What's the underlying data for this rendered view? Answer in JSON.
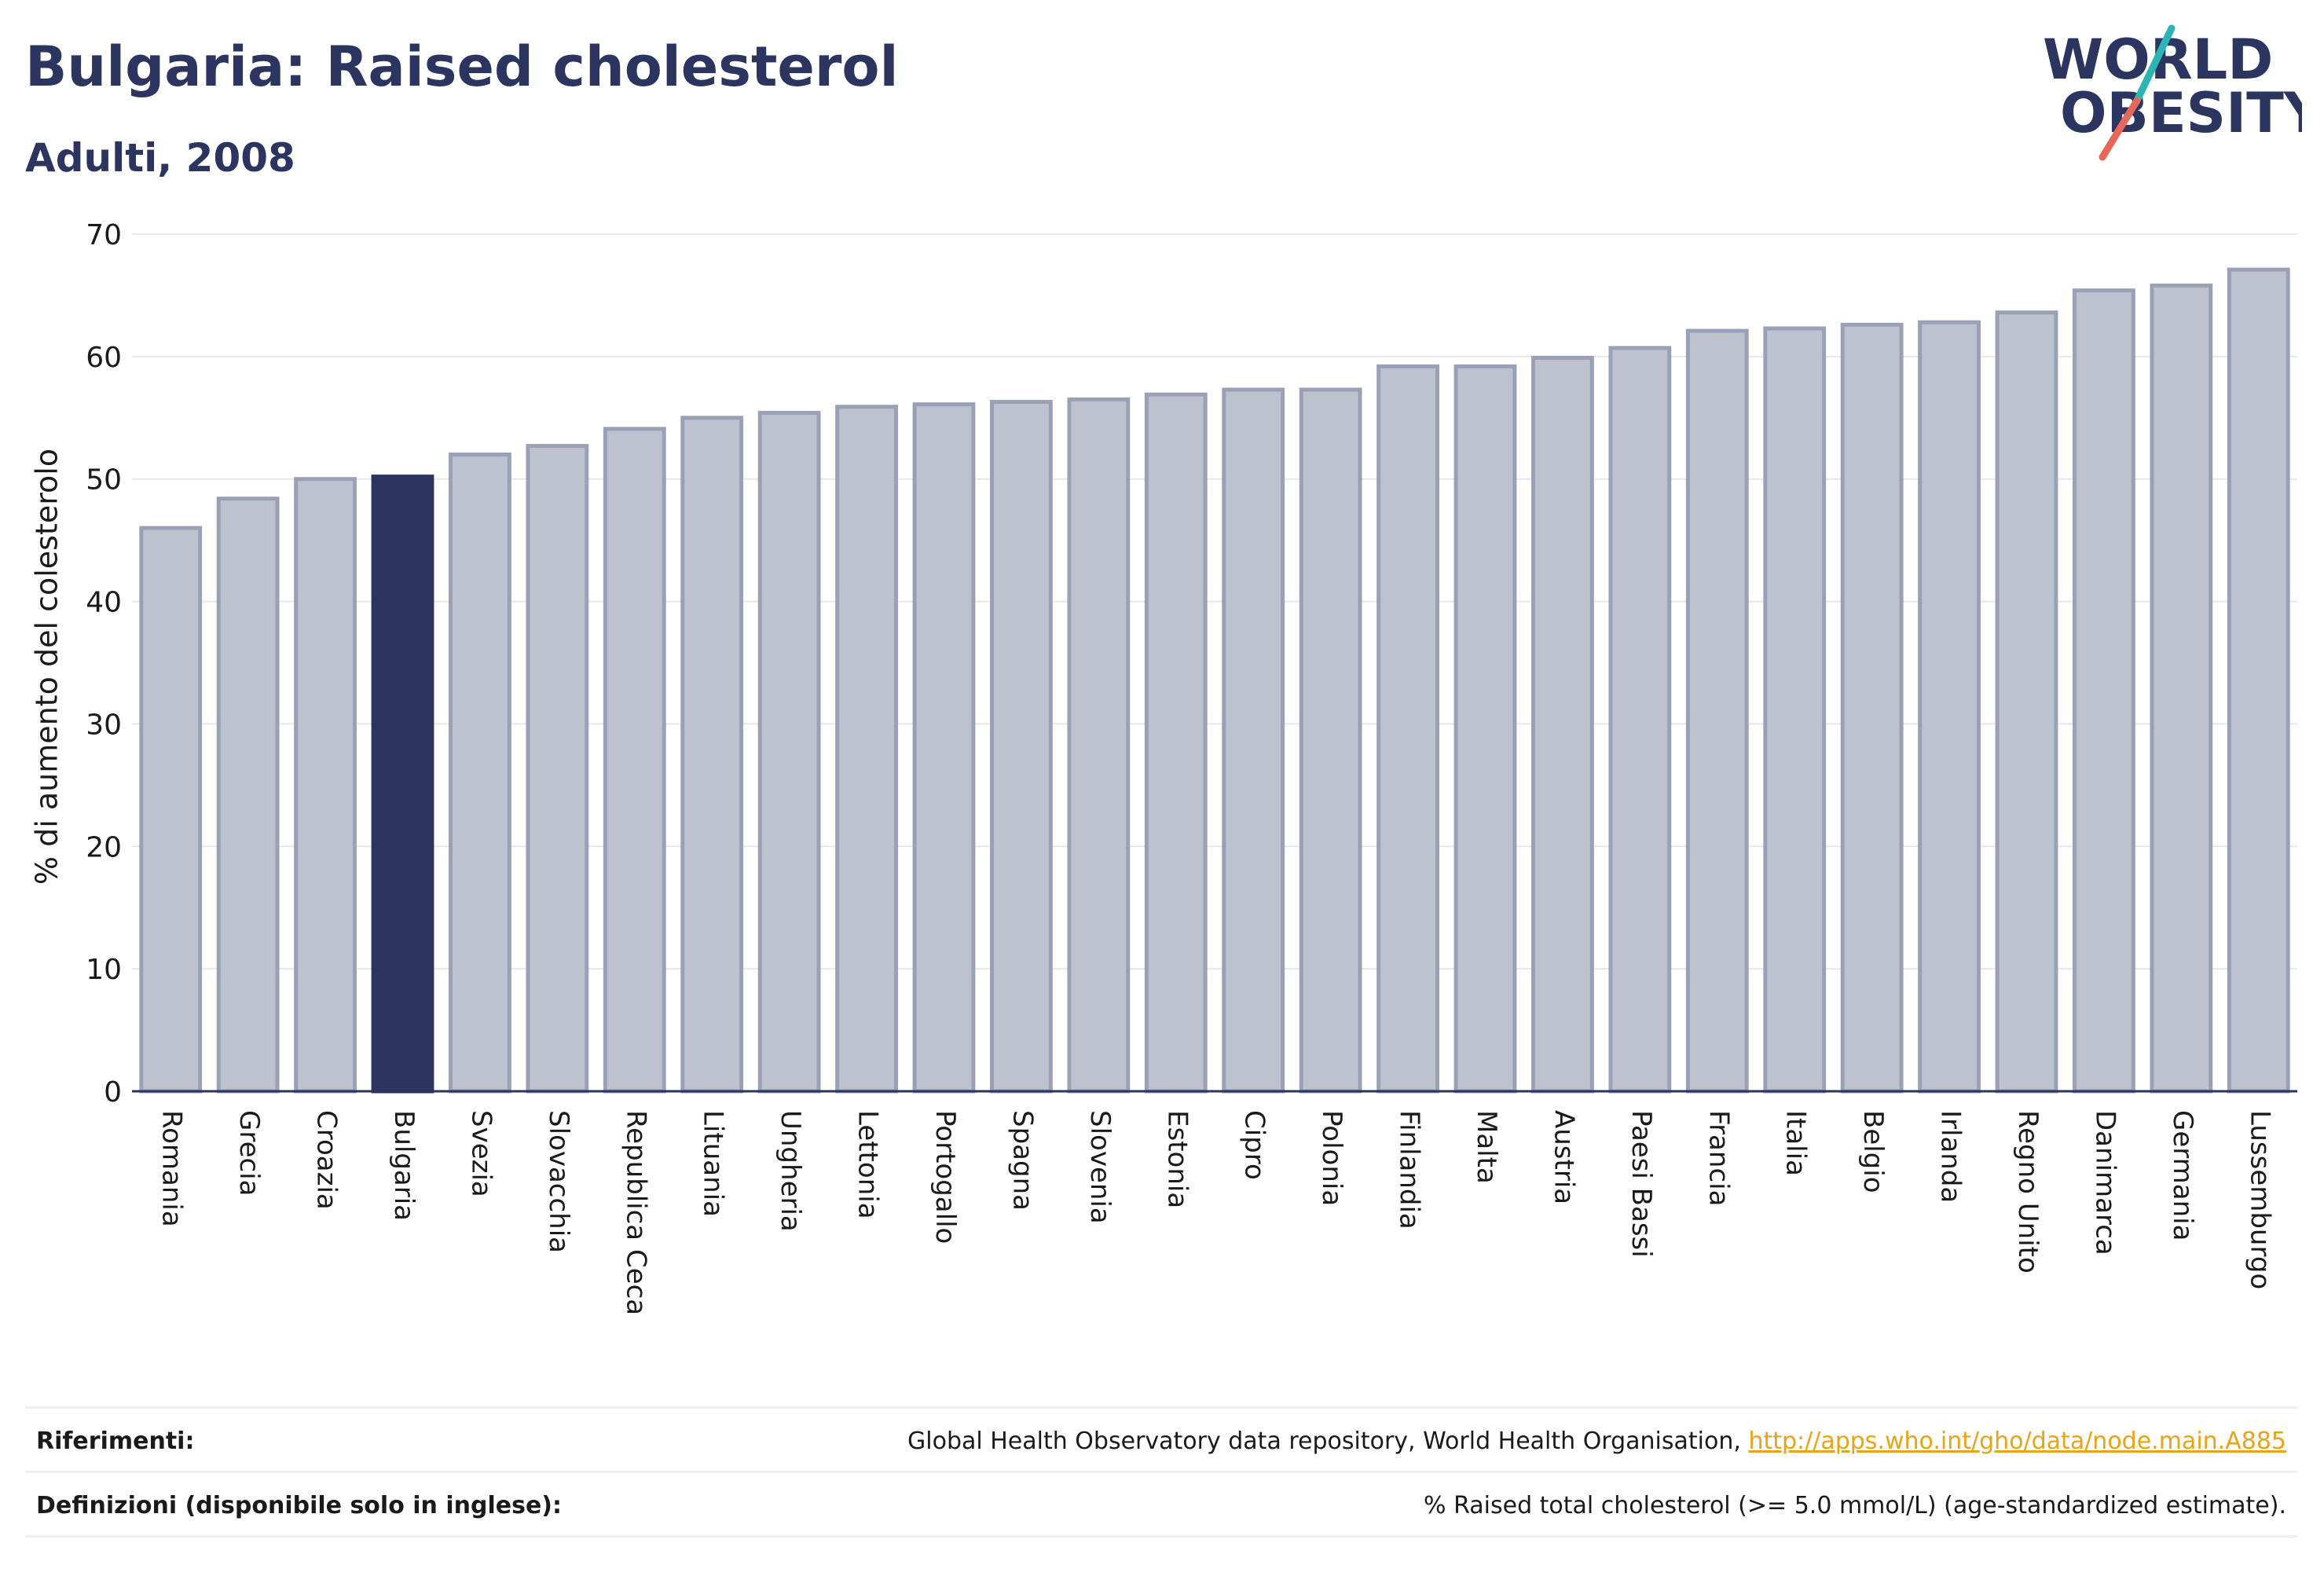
{
  "header": {
    "title": "Bulgaria: Raised cholesterol",
    "subtitle": "Adulti, 2008"
  },
  "logo": {
    "line1": "WORLD",
    "line2": "OBESITY"
  },
  "colors": {
    "highlight": "#2b355f",
    "bar_fill": "#bec2cf",
    "bar_stroke": "#9aa0b6",
    "grid": "#e6e8ee",
    "logo_teal": "#2bb5b5",
    "logo_coral": "#e8675b"
  },
  "chart_data": {
    "type": "bar",
    "title": "Bulgaria: Raised cholesterol",
    "subtitle": "Adulti, 2008",
    "ylabel": "% di aumento del colesterolo",
    "xlabel": "",
    "ylim": [
      0,
      70
    ],
    "yticks": [
      0,
      10,
      20,
      30,
      40,
      50,
      60,
      70
    ],
    "grid": true,
    "highlight": "Bulgaria",
    "categories": [
      "Romania",
      "Grecia",
      "Croazia",
      "Bulgaria",
      "Svezia",
      "Slovacchia",
      "Republica Ceca",
      "Lituania",
      "Ungheria",
      "Lettonia",
      "Portogallo",
      "Spagna",
      "Slovenia",
      "Estonia",
      "Cipro",
      "Polonia",
      "Finlandia",
      "Malta",
      "Austria",
      "Paesi Bassi",
      "Francia",
      "Italia",
      "Belgio",
      "Irlanda",
      "Regno Unito",
      "Danimarca",
      "Germania",
      "Lussemburgo"
    ],
    "values": [
      46.0,
      48.4,
      50.0,
      50.2,
      52.0,
      52.7,
      54.1,
      55.0,
      55.4,
      55.9,
      56.1,
      56.3,
      56.5,
      56.9,
      57.3,
      57.3,
      59.2,
      59.2,
      59.9,
      60.7,
      62.1,
      62.3,
      62.6,
      62.8,
      63.6,
      65.4,
      65.8,
      67.1
    ]
  },
  "footer": {
    "references_label": "Riferimenti:",
    "references_text": "Global Health Observatory data repository, World Health Organisation, ",
    "references_link": "http://apps.who.int/gho/data/node.main.A885",
    "definitions_label": "Definizioni (disponibile solo in inglese):",
    "definitions_text": "% Raised total cholesterol (>= 5.0 mmol/L) (age-standardized estimate)."
  }
}
